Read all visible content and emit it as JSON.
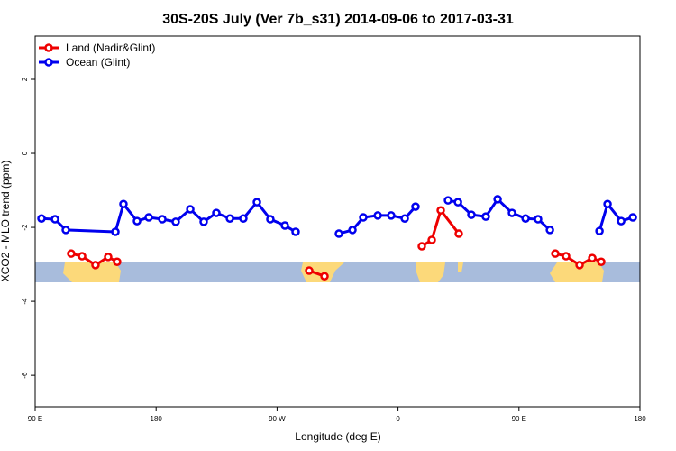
{
  "chart_data": {
    "type": "line",
    "title": "30S-20S July (Ver 7b_s31)   2014-09-06 to 2017-03-31",
    "x_label": "Longitude (deg E)",
    "y_label": "XCO2 - MLO trend (ppm)",
    "xlim": [
      90,
      540
    ],
    "xticks": [
      {
        "value": 90,
        "label": "90 E"
      },
      {
        "value": 180,
        "label": "180"
      },
      {
        "value": 270,
        "label": "90 W"
      },
      {
        "value": 360,
        "label": "0"
      },
      {
        "value": 450,
        "label": "90 E"
      },
      {
        "value": 540,
        "label": "180"
      }
    ],
    "ylim": [
      -6.85,
      3.17
    ],
    "yticks": [
      -6,
      -4,
      -2,
      0,
      2
    ],
    "legend": "top-left",
    "series": [
      {
        "name": "Land (Nadir&Glint)",
        "color": "#ee0000",
        "x": [
          116.8,
          124.9,
          134.9,
          144.3,
          151.0,
          null,
          293.9,
          305.3,
          null,
          377.7,
          385.1,
          391.8,
          405.2,
          null,
          477.0,
          485.0,
          495.1,
          504.5,
          511.2
        ],
        "values": [
          -2.71,
          -2.78,
          -3.02,
          -2.8,
          -2.93,
          null,
          -3.17,
          -3.32,
          null,
          -2.51,
          -2.34,
          -1.54,
          -2.17,
          null,
          -2.71,
          -2.78,
          -3.02,
          -2.83,
          -2.93
        ]
      },
      {
        "name": "Ocean (Glint)",
        "color": "#0000ee",
        "x": [
          94.7,
          104.8,
          112.8,
          149.7,
          155.7,
          165.8,
          174.5,
          184.6,
          194.6,
          205.4,
          215.4,
          224.8,
          234.9,
          244.9,
          255.0,
          265.0,
          275.8,
          283.8,
          null,
          316.0,
          326.1,
          334.1,
          344.9,
          354.9,
          365.0,
          373.0,
          null,
          397.2,
          404.6,
          414.6,
          425.3,
          434.1,
          444.8,
          454.9,
          464.2,
          473.0,
          null,
          509.9,
          515.9,
          526.0,
          534.7
        ],
        "values": [
          -1.76,
          -1.78,
          -2.07,
          -2.12,
          -1.37,
          -1.83,
          -1.73,
          -1.78,
          -1.85,
          -1.51,
          -1.85,
          -1.61,
          -1.76,
          -1.76,
          -1.32,
          -1.78,
          -1.95,
          -2.12,
          null,
          -2.17,
          -2.07,
          -1.73,
          -1.68,
          -1.68,
          -1.76,
          -1.44,
          null,
          -1.27,
          -1.32,
          -1.66,
          -1.71,
          -1.24,
          -1.61,
          -1.76,
          -1.78,
          -2.07,
          null,
          -2.1,
          -1.37,
          -1.83,
          -1.73
        ]
      }
    ]
  }
}
